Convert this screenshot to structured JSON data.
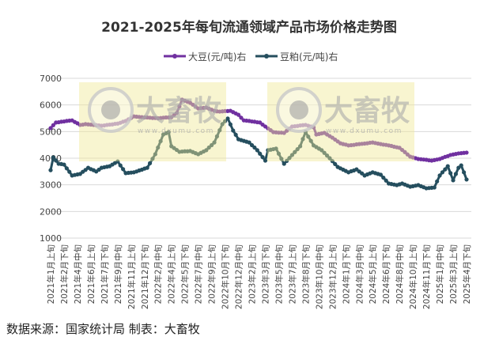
{
  "chart_data": {
    "type": "line",
    "title": "2021-2025年每旬流通领域产品市场价格走势图",
    "ylim": [
      1000,
      7000
    ],
    "yticks": [
      "1000",
      "2000",
      "3000",
      "4000",
      "5000",
      "6000",
      "7000"
    ],
    "grid": true,
    "legend_position": "top",
    "x_tick_labels": [
      "2021年1月上旬",
      "2021年2月下旬",
      "2021年4月中旬",
      "2021年6月上旬",
      "2021年7月下旬",
      "2021年9月中旬",
      "2021年11月上旬",
      "2021年12月下旬",
      "2022年2月中旬",
      "2022年4月上旬",
      "2022年5月下旬",
      "2022年7月中旬",
      "2022年9月上旬",
      "2022年10月下旬",
      "2022年12月中旬",
      "2023年2月上旬",
      "2023年3月下旬",
      "2023年5月中旬",
      "2023年7月上旬",
      "2023年8月下旬",
      "2023年10月中旬",
      "2023年12月上旬",
      "2024年1月下旬",
      "2024年3月中旬",
      "2024年5月上旬",
      "2024年6月下旬",
      "2024年8月中旬",
      "2024年10月上旬",
      "2024年11月下旬",
      "2025年1月中旬",
      "2025年3月上旬",
      "2025年4月下旬"
    ],
    "series": [
      {
        "name": "大豆(元/吨)右",
        "color": "#7030a0",
        "values": [
          5130,
          5240,
          5340,
          5350,
          5370,
          5380,
          5400,
          5410,
          5420,
          5360,
          5310,
          5250,
          5260,
          5280,
          5270,
          5260,
          5250,
          5240,
          5230,
          5220,
          5230,
          5250,
          5260,
          5270,
          5290,
          5300,
          5330,
          5370,
          5400,
          5460,
          5510,
          5570,
          5560,
          5550,
          5540,
          5530,
          5530,
          5520,
          5510,
          5510,
          5500,
          5510,
          5520,
          5530,
          5530,
          5540,
          5620,
          5700,
          5950,
          6200,
          6160,
          6120,
          6080,
          6010,
          5940,
          5870,
          5880,
          5890,
          5900,
          5860,
          5820,
          5780,
          5760,
          5750,
          5760,
          5770,
          5770,
          5780,
          5730,
          5680,
          5630,
          5520,
          5420,
          5410,
          5400,
          5380,
          5370,
          5350,
          5340,
          5260,
          5190,
          5120,
          5050,
          4980,
          4970,
          4960,
          4960,
          4950,
          5030,
          5110,
          5190,
          5200,
          5210,
          5230,
          5240,
          5250,
          5220,
          5190,
          5160,
          4890,
          4910,
          4930,
          4950,
          4890,
          4830,
          4770,
          4700,
          4630,
          4560,
          4530,
          4510,
          4480,
          4490,
          4500,
          4520,
          4530,
          4540,
          4550,
          4560,
          4580,
          4590,
          4570,
          4550,
          4530,
          4510,
          4500,
          4480,
          4460,
          4430,
          4410,
          4390,
          4310,
          4230,
          4140,
          4060,
          4030,
          4000,
          3970,
          3960,
          3950,
          3940,
          3920,
          3910,
          3930,
          3950,
          3970,
          4010,
          4050,
          4080,
          4120,
          4140,
          4160,
          4180,
          4190,
          4200,
          4210
        ]
      },
      {
        "name": "豆粕(元/吨)右",
        "color": "#254e5e",
        "values": [
          3550,
          4030,
          3910,
          3790,
          3780,
          3760,
          3620,
          3490,
          3350,
          3370,
          3390,
          3410,
          3490,
          3560,
          3640,
          3590,
          3550,
          3500,
          3570,
          3640,
          3660,
          3680,
          3700,
          3760,
          3820,
          3880,
          3730,
          3590,
          3440,
          3450,
          3460,
          3470,
          3500,
          3540,
          3570,
          3610,
          3640,
          3810,
          3980,
          4150,
          4400,
          4640,
          4890,
          4940,
          4980,
          4450,
          4380,
          4310,
          4240,
          4250,
          4260,
          4260,
          4270,
          4230,
          4190,
          4150,
          4200,
          4250,
          4300,
          4400,
          4490,
          4590,
          4820,
          5050,
          5280,
          5390,
          5490,
          5270,
          5040,
          4880,
          4710,
          4680,
          4650,
          4620,
          4590,
          4490,
          4400,
          4300,
          4170,
          4040,
          3910,
          4300,
          4320,
          4340,
          4360,
          4170,
          3980,
          3790,
          3900,
          4010,
          4120,
          4230,
          4340,
          4450,
          4720,
          4980,
          4810,
          4650,
          4480,
          4420,
          4360,
          4300,
          4200,
          4100,
          4000,
          3890,
          3780,
          3670,
          3620,
          3570,
          3520,
          3470,
          3510,
          3540,
          3580,
          3500,
          3430,
          3350,
          3390,
          3430,
          3470,
          3440,
          3410,
          3380,
          3270,
          3160,
          3050,
          3030,
          3010,
          2990,
          3020,
          3050,
          3010,
          2970,
          2930,
          2950,
          2970,
          2990,
          2950,
          2910,
          2870,
          2880,
          2890,
          2900,
          3130,
          3350,
          3470,
          3580,
          3700,
          3440,
          3170,
          3410,
          3640,
          3730,
          3470,
          3200
        ]
      }
    ]
  },
  "watermark": {
    "brand": "大畜牧",
    "url": "www.dxumu.com"
  },
  "footer": {
    "text": "数据来源：国家统计局 制表：大畜牧"
  }
}
